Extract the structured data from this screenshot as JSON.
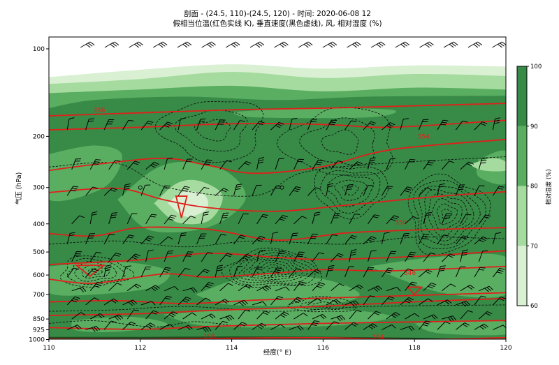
{
  "chart_data": {
    "type": "cross-section",
    "title_line1": "剖面 - (24.5, 110)-(24.5, 120) - 时间: 2020-06-08 12",
    "title_line2": "假相当位温(红色实线 K), 垂直速度(黑色虚线), 风, 相对湿度 (%)",
    "xlabel": "经度(° E)",
    "ylabel": "气压 (hPa)",
    "xlim": [
      110,
      120
    ],
    "x_ticks": [
      "110",
      "112",
      "114",
      "116",
      "118",
      "120"
    ],
    "y_ticks": [
      {
        "p": 100,
        "label": "100"
      },
      {
        "p": 200,
        "label": "200"
      },
      {
        "p": 300,
        "label": "300"
      },
      {
        "p": 400,
        "label": "400"
      },
      {
        "p": 500,
        "label": "500"
      },
      {
        "p": 600,
        "label": "600"
      },
      {
        "p": 700,
        "label": "700"
      },
      {
        "p": 850,
        "label": "850"
      },
      {
        "p": 925,
        "label": "925"
      },
      {
        "p": 1000,
        "label": "1000"
      }
    ],
    "colorbar": {
      "label": "相对湿度 (%)",
      "levels": [
        60,
        70,
        80,
        90,
        100
      ],
      "tick_labels": [
        "60",
        "70",
        "80",
        "90",
        "100"
      ],
      "colors": [
        "#d9f0d3",
        "#a6dba0",
        "#5aae61",
        "#378b47"
      ]
    },
    "theta_e_labels": [
      {
        "lon": 111.1,
        "p": 162,
        "text": "356"
      },
      {
        "lon": 113.5,
        "p": 976,
        "text": "358"
      },
      {
        "lon": 118.2,
        "p": 200,
        "text": "354"
      },
      {
        "lon": 117.7,
        "p": 395,
        "text": "350"
      },
      {
        "lon": 117.9,
        "p": 590,
        "text": "346"
      },
      {
        "lon": 117.2,
        "p": 982,
        "text": "354"
      }
    ],
    "theta_e_lines": [
      [
        [
          110,
          170
        ],
        [
          112,
          166
        ],
        [
          114,
          162
        ],
        [
          116,
          160
        ],
        [
          118,
          157
        ],
        [
          120,
          154
        ]
      ],
      [
        [
          110,
          190
        ],
        [
          112,
          186
        ],
        [
          114,
          181
        ],
        [
          116,
          182
        ],
        [
          117.5,
          186
        ],
        [
          120,
          176
        ]
      ],
      [
        [
          110,
          262
        ],
        [
          111,
          250
        ],
        [
          112.5,
          238
        ],
        [
          113.5,
          252
        ],
        [
          114.5,
          268
        ],
        [
          116,
          254
        ],
        [
          117.5,
          222
        ],
        [
          120,
          205
        ]
      ],
      [
        [
          110,
          312
        ],
        [
          111.5,
          302
        ],
        [
          112.5,
          330
        ],
        [
          113.5,
          352
        ],
        [
          115,
          362
        ],
        [
          116.5,
          345
        ],
        [
          118.5,
          322
        ],
        [
          120,
          310
        ]
      ],
      [
        [
          110,
          432
        ],
        [
          111,
          440
        ],
        [
          112,
          412
        ],
        [
          113.5,
          418
        ],
        [
          115,
          455
        ],
        [
          116.5,
          430
        ],
        [
          118,
          420
        ],
        [
          120,
          412
        ]
      ],
      [
        [
          110,
          552
        ],
        [
          112,
          532
        ],
        [
          113.5,
          505
        ],
        [
          115,
          522
        ],
        [
          116,
          530
        ],
        [
          118,
          518
        ],
        [
          120,
          495
        ]
      ],
      [
        [
          110,
          620
        ],
        [
          111,
          640
        ],
        [
          112.5,
          595
        ],
        [
          113.5,
          610
        ],
        [
          115,
          590
        ],
        [
          116,
          575
        ],
        [
          117.5,
          580
        ],
        [
          120,
          560
        ]
      ],
      [
        [
          110,
          742
        ],
        [
          111.5,
          735
        ],
        [
          113,
          752
        ],
        [
          114.5,
          732
        ],
        [
          116,
          720
        ],
        [
          118,
          705
        ],
        [
          120,
          690
        ]
      ],
      [
        [
          110,
          826
        ],
        [
          112,
          815
        ],
        [
          113.5,
          795
        ],
        [
          115,
          780
        ],
        [
          116.5,
          762
        ],
        [
          118,
          742
        ],
        [
          120,
          722
        ]
      ],
      [
        [
          110,
          910
        ],
        [
          112,
          922
        ],
        [
          113.5,
          902
        ],
        [
          116,
          880
        ],
        [
          118,
          870
        ],
        [
          120,
          860
        ]
      ],
      [
        [
          110,
          995
        ],
        [
          112,
          998
        ],
        [
          114,
          990
        ],
        [
          116,
          986
        ],
        [
          118,
          1000
        ],
        [
          120,
          985
        ]
      ]
    ],
    "omega_centers": [
      {
        "lon": 114.9,
        "p": 575,
        "rx": 1.05,
        "rp": 85,
        "n": 9
      },
      {
        "lon": 111.0,
        "p": 585,
        "rx": 0.75,
        "rp": 70,
        "n": 5
      },
      {
        "lon": 118.7,
        "p": 370,
        "rx": 0.85,
        "rp": 110,
        "n": 8
      },
      {
        "lon": 116.6,
        "p": 305,
        "rx": 0.8,
        "rp": 60,
        "n": 5
      },
      {
        "lon": 113.6,
        "p": 190,
        "rx": 1.1,
        "rp": 45,
        "n": 3
      },
      {
        "lon": 116.4,
        "p": 210,
        "rx": 1.2,
        "rp": 55,
        "n": 3
      },
      {
        "lon": 116.0,
        "p": 760,
        "rx": 0.7,
        "rp": 45,
        "n": 3
      }
    ],
    "barb_top_row_p": 100,
    "wind_barb_rows_p": [
      190,
      260,
      320,
      400,
      470,
      540,
      610,
      680,
      760,
      850,
      925
    ]
  }
}
